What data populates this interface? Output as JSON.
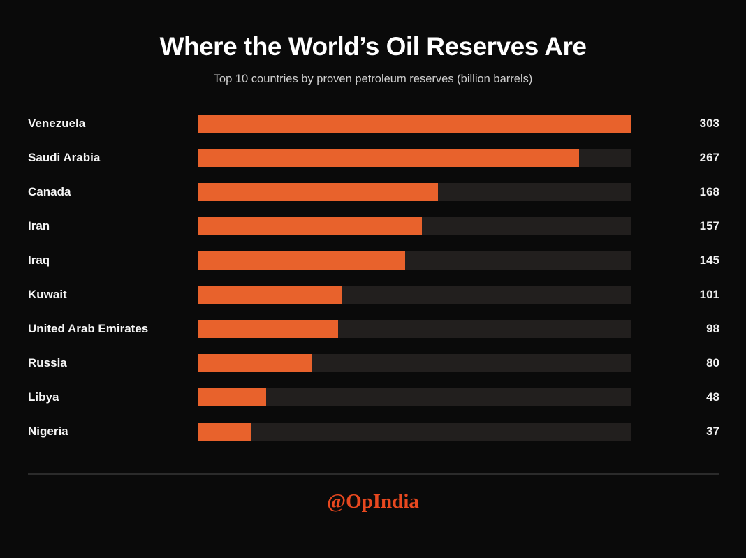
{
  "header": {
    "title": "Where the World’s Oil Reserves Are",
    "subtitle": "Top 10 countries by proven petroleum reserves (billion barrels)"
  },
  "chart_data": {
    "type": "bar",
    "orientation": "horizontal",
    "title": "Where the World’s Oil Reserves Are",
    "subtitle": "Top 10 countries by proven petroleum reserves (billion barrels)",
    "unit": "billion barrels",
    "categories": [
      "Venezuela",
      "Saudi Arabia",
      "Canada",
      "Iran",
      "Iraq",
      "Kuwait",
      "United Arab Emirates",
      "Russia",
      "Libya",
      "Nigeria"
    ],
    "values": [
      303,
      267,
      168,
      157,
      145,
      101,
      98,
      80,
      48,
      37
    ],
    "xlim": [
      0,
      303
    ],
    "value_labels_shown": true,
    "grid": false,
    "legend": "none"
  },
  "footer": {
    "handle": "@OpIndia"
  },
  "colors": {
    "background": "#0a0a0a",
    "bar": "#e8622c",
    "track": "#221f1e",
    "title": "#ffffff",
    "subtitle": "#cfcfcf",
    "value": "#f2f2f2",
    "divider": "#2b2b2b",
    "footer": "#e8481f"
  }
}
